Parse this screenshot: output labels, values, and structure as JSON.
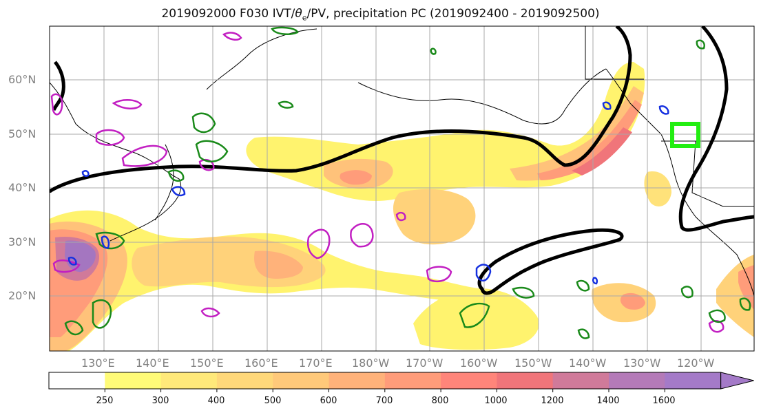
{
  "title": {
    "prefix": "2019092000 F030 IVT/",
    "theta": "θ",
    "theta_sub": "e",
    "suffix": "/PV, precipitation PC (2019092400 - 2019092500)"
  },
  "map": {
    "lat_labels": [
      "60°N",
      "50°N",
      "40°N",
      "30°N",
      "20°N"
    ],
    "lon_labels": [
      "130°E",
      "140°E",
      "150°E",
      "160°E",
      "170°E",
      "180°W",
      "170°W",
      "160°W",
      "150°W",
      "140°W",
      "130°W",
      "120°W"
    ],
    "ivt_colors": {
      "250-300": "#fff36e",
      "300-400": "#ffe27a",
      "400-500": "#ffd27a",
      "500-600": "#ffc27a",
      "600-700": "#ffb27a",
      "700-800": "#ff9c7a",
      "800-1000": "#ff857a",
      "1000-1200": "#f0757a",
      "1200-1400": "#d07a9a",
      "1400-1600": "#a476c0",
      "1600+": "#a47ac8"
    },
    "contour_colors": {
      "theta_e": "#000000",
      "pv_green": "#1a8a1a",
      "pv_magenta": "#c21fc2",
      "pv_blue": "#1530e0",
      "target_box": "#22ee11"
    }
  },
  "colorbar": {
    "ticks": [
      "250",
      "300",
      "400",
      "500",
      "600",
      "700",
      "800",
      "1000",
      "1200",
      "1400",
      "1600"
    ],
    "segment_colors": [
      "#ffffff",
      "#fffb78",
      "#ffe97a",
      "#ffd87a",
      "#ffc97a",
      "#ffb27a",
      "#ff9c7a",
      "#ff857a",
      "#f0757a",
      "#d07a9a",
      "#b47ab8",
      "#a47ac8"
    ]
  }
}
